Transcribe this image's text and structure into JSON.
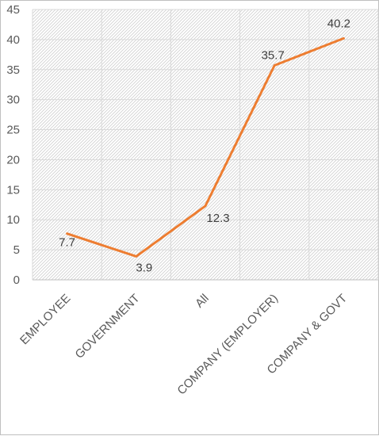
{
  "chart_data": {
    "type": "line",
    "title": "",
    "xlabel": "",
    "ylabel": "",
    "categories": [
      "EMPLOYEE",
      "GOVERNMENT",
      "All",
      "COMPANY (EMPLOYER)",
      "COMPANY & GOVT"
    ],
    "series": [
      {
        "values": [
          7.7,
          3.9,
          12.3,
          35.7,
          40.2
        ],
        "data_labels": [
          "7.7",
          "3.9",
          "12.3",
          "35.7",
          "40.2"
        ]
      }
    ],
    "ylim": [
      0,
      45
    ],
    "yticks": [
      "0",
      "5",
      "10",
      "15",
      "20",
      "25",
      "30",
      "35",
      "40",
      "45"
    ],
    "grid": true,
    "legend": "none",
    "line_color": "#ed7d31",
    "plot_background": "hatched-gray"
  }
}
